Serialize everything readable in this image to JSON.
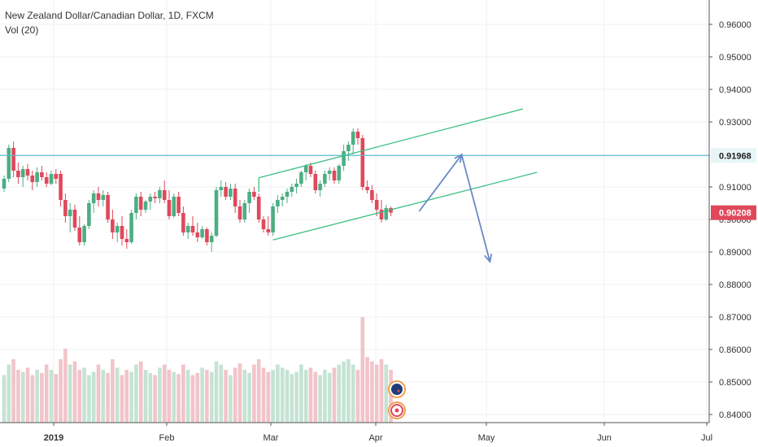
{
  "legend": {
    "title": "New Zealand Dollar/Canadian Dollar, 1D, FXCM",
    "volume": "Vol (20)"
  },
  "colors": {
    "up": "#4cae84",
    "down": "#e0485b",
    "vol_up": "#c5e3d3",
    "vol_down": "#f2c4c9",
    "grid": "#eef0f3",
    "axis_line": "#555555",
    "horizontal_level": "#5bbccf",
    "channel": "#3bbf83",
    "projection": "#6a8bc8",
    "price_tag_bg": "#e0485b",
    "level_tag_bg": "#e7f5f7"
  },
  "chart_data": {
    "type": "candlestick",
    "y_ticks": [
      "0.96000",
      "0.95000",
      "0.94000",
      "0.93000",
      "0.91000",
      "0.90000",
      "0.89000",
      "0.88000",
      "0.87000",
      "0.86000",
      "0.85000",
      "0.84000"
    ],
    "x_ticks": [
      "2019",
      "Feb",
      "Mar",
      "Apr",
      "May",
      "Jun",
      "Jul"
    ],
    "ylim": [
      0.8375,
      0.9675
    ],
    "level_line": {
      "value": 0.91968,
      "label": "0.91968"
    },
    "last_price": {
      "value": 0.90208,
      "label": "0.90208"
    },
    "channel": {
      "upper": [
        [
          54,
          0.9128
        ],
        [
          110,
          0.934
        ]
      ],
      "lower": [
        [
          57,
          0.8937
        ],
        [
          113,
          0.9145
        ]
      ]
    },
    "projection": [
      [
        88,
        0.9025
      ],
      [
        97,
        0.9199
      ],
      [
        103,
        0.887
      ]
    ],
    "candles": [
      [
        0.9095,
        0.9135,
        0.9085,
        0.9125
      ],
      [
        0.9125,
        0.923,
        0.9115,
        0.922
      ],
      [
        0.922,
        0.924,
        0.913,
        0.915
      ],
      [
        0.915,
        0.9175,
        0.911,
        0.913
      ],
      [
        0.913,
        0.9165,
        0.91,
        0.9155
      ],
      [
        0.9155,
        0.917,
        0.912,
        0.9135
      ],
      [
        0.9135,
        0.915,
        0.909,
        0.9115
      ],
      [
        0.9115,
        0.916,
        0.91,
        0.9145
      ],
      [
        0.9145,
        0.9165,
        0.912,
        0.913
      ],
      [
        0.913,
        0.9145,
        0.91,
        0.911
      ],
      [
        0.911,
        0.915,
        0.9105,
        0.914
      ],
      [
        0.914,
        0.9155,
        0.911,
        0.9125
      ],
      [
        0.914,
        0.915,
        0.904,
        0.906
      ],
      [
        0.906,
        0.908,
        0.899,
        0.901
      ],
      [
        0.901,
        0.905,
        0.896,
        0.903
      ],
      [
        0.903,
        0.9045,
        0.8965,
        0.8975
      ],
      [
        0.8975,
        0.901,
        0.892,
        0.893
      ],
      [
        0.893,
        0.8985,
        0.892,
        0.898
      ],
      [
        0.898,
        0.906,
        0.897,
        0.905
      ],
      [
        0.905,
        0.909,
        0.902,
        0.908
      ],
      [
        0.908,
        0.91,
        0.904,
        0.906
      ],
      [
        0.906,
        0.909,
        0.904,
        0.9075
      ],
      [
        0.9075,
        0.9085,
        0.899,
        0.9
      ],
      [
        0.9,
        0.903,
        0.894,
        0.896
      ],
      [
        0.896,
        0.899,
        0.893,
        0.898
      ],
      [
        0.898,
        0.901,
        0.892,
        0.894
      ],
      [
        0.894,
        0.897,
        0.891,
        0.893
      ],
      [
        0.893,
        0.903,
        0.8925,
        0.902
      ],
      [
        0.902,
        0.908,
        0.9,
        0.907
      ],
      [
        0.907,
        0.9085,
        0.901,
        0.903
      ],
      [
        0.903,
        0.906,
        0.902,
        0.9055
      ],
      [
        0.9055,
        0.908,
        0.903,
        0.907
      ],
      [
        0.907,
        0.9085,
        0.905,
        0.9065
      ],
      [
        0.9065,
        0.91,
        0.905,
        0.909
      ],
      [
        0.909,
        0.912,
        0.905,
        0.906
      ],
      [
        0.906,
        0.909,
        0.9,
        0.901
      ],
      [
        0.901,
        0.908,
        0.9005,
        0.907
      ],
      [
        0.907,
        0.9085,
        0.901,
        0.902
      ],
      [
        0.902,
        0.904,
        0.895,
        0.896
      ],
      [
        0.896,
        0.899,
        0.894,
        0.898
      ],
      [
        0.898,
        0.901,
        0.895,
        0.896
      ],
      [
        0.896,
        0.899,
        0.893,
        0.8945
      ],
      [
        0.8945,
        0.898,
        0.894,
        0.897
      ],
      [
        0.897,
        0.8975,
        0.892,
        0.893
      ],
      [
        0.893,
        0.896,
        0.89,
        0.895
      ],
      [
        0.895,
        0.91,
        0.8945,
        0.909
      ],
      [
        0.909,
        0.912,
        0.907,
        0.91
      ],
      [
        0.91,
        0.9115,
        0.906,
        0.907
      ],
      [
        0.907,
        0.911,
        0.906,
        0.9095
      ],
      [
        0.9095,
        0.911,
        0.902,
        0.904
      ],
      [
        0.904,
        0.906,
        0.899,
        0.9
      ],
      [
        0.9,
        0.906,
        0.899,
        0.905
      ],
      [
        0.905,
        0.9095,
        0.902,
        0.9085
      ],
      [
        0.9085,
        0.91,
        0.906,
        0.907
      ],
      [
        0.907,
        0.908,
        0.899,
        0.9
      ],
      [
        0.9,
        0.901,
        0.896,
        0.897
      ],
      [
        0.897,
        0.901,
        0.895,
        0.896
      ],
      [
        0.896,
        0.905,
        0.895,
        0.904
      ],
      [
        0.904,
        0.9075,
        0.902,
        0.906
      ],
      [
        0.906,
        0.908,
        0.904,
        0.907
      ],
      [
        0.907,
        0.9095,
        0.905,
        0.9085
      ],
      [
        0.9085,
        0.911,
        0.907,
        0.91
      ],
      [
        0.91,
        0.9125,
        0.908,
        0.911
      ],
      [
        0.911,
        0.915,
        0.91,
        0.9145
      ],
      [
        0.9145,
        0.917,
        0.912,
        0.9165
      ],
      [
        0.9165,
        0.9175,
        0.913,
        0.914
      ],
      [
        0.914,
        0.915,
        0.908,
        0.909
      ],
      [
        0.909,
        0.912,
        0.907,
        0.911
      ],
      [
        0.911,
        0.915,
        0.91,
        0.914
      ],
      [
        0.914,
        0.916,
        0.912,
        0.915
      ],
      [
        0.915,
        0.916,
        0.911,
        0.912
      ],
      [
        0.912,
        0.917,
        0.911,
        0.9165
      ],
      [
        0.9165,
        0.923,
        0.915,
        0.921
      ],
      [
        0.921,
        0.924,
        0.918,
        0.923
      ],
      [
        0.923,
        0.928,
        0.92,
        0.927
      ],
      [
        0.927,
        0.928,
        0.923,
        0.925
      ],
      [
        0.925,
        0.926,
        0.909,
        0.91
      ],
      [
        0.91,
        0.912,
        0.908,
        0.909
      ],
      [
        0.909,
        0.9105,
        0.905,
        0.906
      ],
      [
        0.906,
        0.908,
        0.901,
        0.903
      ],
      [
        0.903,
        0.906,
        0.899,
        0.9
      ],
      [
        0.9,
        0.9045,
        0.8995,
        0.9035
      ],
      [
        0.9035,
        0.904,
        0.901,
        0.9021
      ]
    ],
    "volumes": [
      0.45,
      0.55,
      0.6,
      0.5,
      0.48,
      0.52,
      0.45,
      0.5,
      0.47,
      0.55,
      0.5,
      0.46,
      0.6,
      0.7,
      0.55,
      0.58,
      0.5,
      0.52,
      0.45,
      0.48,
      0.55,
      0.5,
      0.47,
      0.6,
      0.52,
      0.45,
      0.5,
      0.48,
      0.55,
      0.58,
      0.5,
      0.47,
      0.45,
      0.52,
      0.55,
      0.5,
      0.48,
      0.46,
      0.55,
      0.5,
      0.45,
      0.47,
      0.52,
      0.5,
      0.48,
      0.58,
      0.55,
      0.5,
      0.45,
      0.52,
      0.56,
      0.5,
      0.47,
      0.55,
      0.6,
      0.52,
      0.48,
      0.5,
      0.55,
      0.52,
      0.5,
      0.46,
      0.48,
      0.55,
      0.5,
      0.52,
      0.48,
      0.45,
      0.5,
      0.47,
      0.52,
      0.55,
      0.58,
      0.6,
      0.55,
      0.5,
      1.0,
      0.62,
      0.58,
      0.55,
      0.6,
      0.55,
      0.5
    ]
  }
}
